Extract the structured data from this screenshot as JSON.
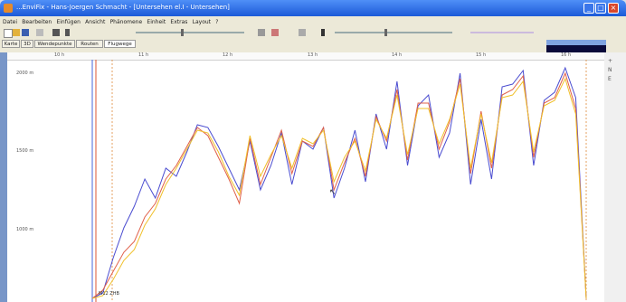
{
  "window": {
    "title": "...EnviFix - Hans-Joergen Schmacht - [Untersehen el.I - Untersehen]"
  },
  "menu": [
    "Datei",
    "Bearbeiten",
    "Einfügen",
    "Ansicht",
    "Phänomene",
    "Einheit",
    "Extras",
    "Layout",
    "?"
  ],
  "tabs": [
    "Karte",
    "3D",
    "Wendepunkte",
    "Routen",
    "Flugwege"
  ],
  "active_tab": "Flugwege",
  "top_axis_labels": [
    "10 h",
    "11 h",
    "12 h",
    "13 h",
    "14 h",
    "15 h",
    "16 h"
  ],
  "y_axis_labels": [
    "2000 m",
    "1500 m",
    "1000 m"
  ],
  "cursor_label": "M12 ZHB",
  "side_labels": [
    "+",
    "N",
    "E"
  ],
  "chart_data": {
    "type": "line",
    "series": [
      {
        "color": "#4a4cd0",
        "values": [
          0,
          4,
          30,
          52,
          68,
          88,
          74,
          96,
          90,
          108,
          128,
          126,
          112,
          96,
          80,
          116,
          80,
          98,
          122,
          84,
          116,
          110,
          126,
          74,
          96,
          124,
          86,
          136,
          110,
          160,
          98,
          142,
          150,
          104,
          122,
          166,
          84,
          132,
          88,
          156,
          158,
          168,
          98,
          146,
          152,
          170,
          148,
          0
        ]
      },
      {
        "color": "#e0604a",
        "values": [
          0,
          6,
          20,
          34,
          42,
          60,
          70,
          88,
          98,
          112,
          126,
          120,
          104,
          88,
          70,
          118,
          84,
          104,
          124,
          92,
          116,
          112,
          126,
          80,
          100,
          118,
          90,
          134,
          116,
          154,
          102,
          144,
          144,
          110,
          130,
          162,
          92,
          138,
          96,
          150,
          154,
          164,
          104,
          144,
          148,
          166,
          140,
          0
        ]
      },
      {
        "color": "#f0c02a",
        "values": [
          0,
          2,
          14,
          28,
          36,
          54,
          66,
          84,
          96,
          110,
          124,
          122,
          108,
          90,
          76,
          120,
          90,
          106,
          120,
          96,
          118,
          114,
          124,
          86,
          104,
          116,
          94,
          132,
          118,
          150,
          106,
          140,
          140,
          114,
          132,
          158,
          96,
          136,
          100,
          148,
          150,
          160,
          108,
          142,
          146,
          162,
          136,
          0
        ]
      }
    ],
    "ylabels": [
      "2000 m",
      "1500 m",
      "1000 m"
    ]
  }
}
